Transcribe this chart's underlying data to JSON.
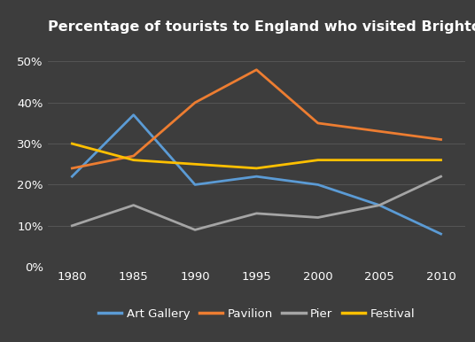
{
  "title": "Percentage of tourists to England who visited Brighton attractions",
  "years": [
    1980,
    1985,
    1990,
    1995,
    2000,
    2005,
    2010
  ],
  "series": {
    "Art Gallery": {
      "values": [
        22,
        37,
        20,
        22,
        20,
        15,
        8
      ],
      "color": "#5b9bd5"
    },
    "Pavilion": {
      "values": [
        24,
        27,
        40,
        48,
        35,
        33,
        31
      ],
      "color": "#ed7d31"
    },
    "Pier": {
      "values": [
        10,
        15,
        9,
        13,
        12,
        15,
        22
      ],
      "color": "#a5a5a5"
    },
    "Festival": {
      "values": [
        30,
        26,
        25,
        24,
        26,
        26,
        26
      ],
      "color": "#ffc000"
    }
  },
  "ylim": [
    0,
    55
  ],
  "yticks": [
    0,
    10,
    20,
    30,
    40,
    50
  ],
  "ytick_labels": [
    "0%",
    "10%",
    "20%",
    "30%",
    "40%",
    "50%"
  ],
  "background_color": "#3d3d3d",
  "grid_color": "#555555",
  "text_color": "#ffffff",
  "title_fontsize": 11.5,
  "legend_fontsize": 9.5,
  "tick_fontsize": 9.5,
  "linewidth": 2.0
}
